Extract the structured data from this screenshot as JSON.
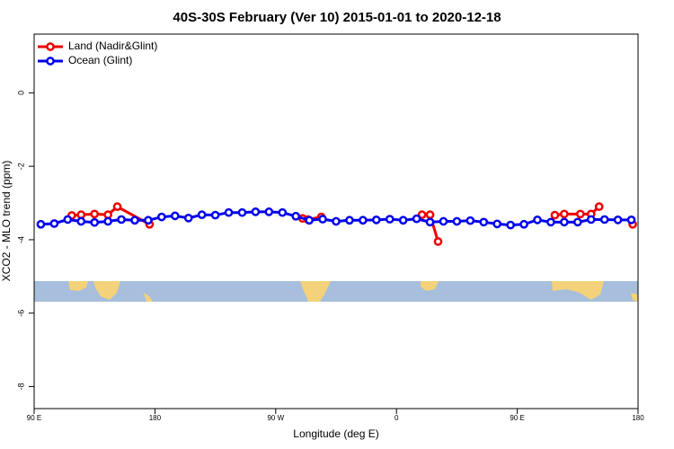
{
  "chart_data": {
    "type": "line",
    "title": "40S-30S February (Ver 10)   2015-01-01 to 2020-12-18",
    "x_label": "Longitude (deg E)",
    "y_label": "XCO2 - MLO trend (ppm)",
    "xlim": [
      90,
      540
    ],
    "ylim": [
      -8.6,
      1.6
    ],
    "xticks": [
      {
        "value": 90,
        "label": "90 E"
      },
      {
        "value": 180,
        "label": "180"
      },
      {
        "value": 270,
        "label": "90 W"
      },
      {
        "value": 360,
        "label": "0"
      },
      {
        "value": 450,
        "label": "90 E"
      },
      {
        "value": 540,
        "label": "180"
      }
    ],
    "yticks": [
      -8,
      -6,
      -4,
      -2,
      0
    ],
    "legend": "top-left",
    "series": [
      {
        "name": "Land (Nadir&Glint)",
        "color": "#ee0000",
        "x": [
          118,
          125,
          135,
          145,
          152,
          176,
          null,
          290,
          294,
          304,
          null,
          379,
          385,
          391,
          null,
          478,
          485,
          497,
          505,
          511,
          null,
          536
        ],
        "values": [
          -3.34,
          -3.32,
          -3.3,
          -3.32,
          -3.1,
          -3.58,
          null,
          -3.42,
          -3.45,
          -3.38,
          null,
          -3.32,
          -3.32,
          -4.05,
          null,
          -3.33,
          -3.3,
          -3.3,
          -3.3,
          -3.1,
          null,
          -3.58
        ]
      },
      {
        "name": "Ocean (Glint)",
        "color": "#0000ee",
        "x": [
          95,
          105,
          115,
          125,
          135,
          145,
          155,
          165,
          175,
          185,
          195,
          205,
          215,
          225,
          235,
          245,
          255,
          265,
          275,
          285,
          295,
          305,
          315,
          325,
          335,
          345,
          355,
          365,
          375,
          385,
          395,
          405,
          415,
          425,
          435,
          445,
          455,
          465,
          475,
          485,
          495,
          505,
          515,
          525,
          535
        ],
        "values": [
          -3.58,
          -3.56,
          -3.45,
          -3.5,
          -3.53,
          -3.5,
          -3.45,
          -3.47,
          -3.47,
          -3.38,
          -3.35,
          -3.41,
          -3.32,
          -3.33,
          -3.26,
          -3.26,
          -3.24,
          -3.24,
          -3.26,
          -3.36,
          -3.47,
          -3.44,
          -3.5,
          -3.47,
          -3.47,
          -3.46,
          -3.44,
          -3.47,
          -3.43,
          -3.52,
          -3.5,
          -3.5,
          -3.48,
          -3.52,
          -3.57,
          -3.6,
          -3.58,
          -3.46,
          -3.52,
          -3.52,
          -3.52,
          -3.45,
          -3.45,
          -3.46,
          -3.46
        ]
      }
    ]
  }
}
